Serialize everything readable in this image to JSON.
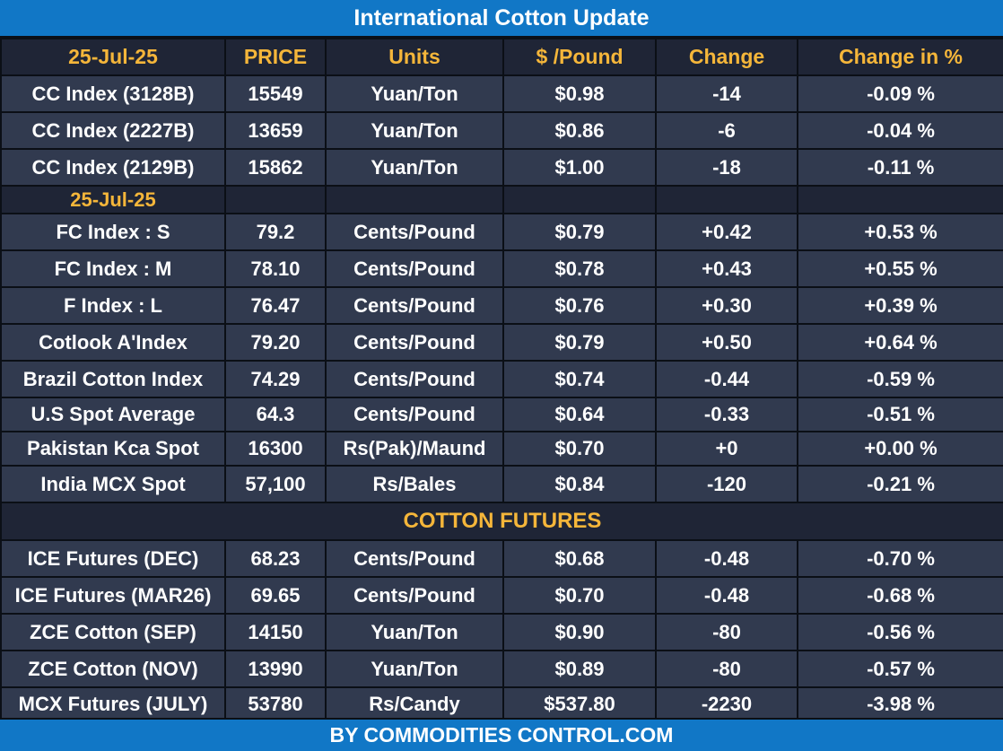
{
  "title": "International Cotton Update",
  "footer": "BY  COMMODITIES CONTROL.COM",
  "header": [
    "25-Jul-25",
    "PRICE",
    "Units",
    "$ /Pound",
    "Change",
    "Change in %"
  ],
  "cc_rows": [
    [
      "CC Index (3128B)",
      "15549",
      "Yuan/Ton",
      "$0.98",
      "-14",
      "-0.09 %"
    ],
    [
      "CC Index (2227B)",
      "13659",
      "Yuan/Ton",
      "$0.86",
      "-6",
      "-0.04 %"
    ],
    [
      "CC Index (2129B)",
      "15862",
      "Yuan/Ton",
      "$1.00",
      "-18",
      "-0.11 %"
    ]
  ],
  "second_date": "25-Jul-25",
  "index_rows": [
    [
      "FC Index : S",
      "79.2",
      "Cents/Pound",
      "$0.79",
      "+0.42",
      "+0.53 %"
    ],
    [
      "FC Index : M",
      "78.10",
      "Cents/Pound",
      "$0.78",
      "+0.43",
      "+0.55 %"
    ],
    [
      "F Index : L",
      "76.47",
      "Cents/Pound",
      "$0.76",
      "+0.30",
      "+0.39 %"
    ],
    [
      "Cotlook A'Index",
      "79.20",
      "Cents/Pound",
      "$0.79",
      "+0.50",
      "+0.64 %"
    ],
    [
      "Brazil Cotton Index",
      "74.29",
      "Cents/Pound",
      "$0.74",
      "-0.44",
      "-0.59 %"
    ],
    [
      "U.S Spot Average",
      "64.3",
      "Cents/Pound",
      "$0.64",
      "-0.33",
      "-0.51 %"
    ],
    [
      "Pakistan Kca Spot",
      "16300",
      "Rs(Pak)/Maund",
      "$0.70",
      "+0",
      "+0.00 %"
    ],
    [
      "India MCX Spot",
      "57,100",
      "Rs/Bales",
      "$0.84",
      "-120",
      "-0.21 %"
    ]
  ],
  "futures_title": "COTTON FUTURES",
  "futures_rows": [
    [
      "ICE Futures (DEC)",
      "68.23",
      "Cents/Pound",
      "$0.68",
      "-0.48",
      "-0.70 %"
    ],
    [
      "ICE Futures (MAR26)",
      "69.65",
      "Cents/Pound",
      "$0.70",
      "-0.48",
      "-0.68 %"
    ],
    [
      "ZCE Cotton (SEP)",
      "14150",
      "Yuan/Ton",
      "$0.90",
      "-80",
      "-0.56 %"
    ],
    [
      "ZCE Cotton (NOV)",
      "13990",
      "Yuan/Ton",
      "$0.89",
      "-80",
      "-0.57 %"
    ],
    [
      "MCX Futures (JULY)",
      "53780",
      "Rs/Candy",
      "$537.80",
      "-2230",
      "-3.98 %"
    ]
  ],
  "colors": {
    "title_bar": "#1177c6",
    "header_text": "#f5b63a",
    "row_bg": "#313a4f",
    "header_bg": "#1f2536",
    "grid": "#0b0f16",
    "text": "#ffffff"
  }
}
